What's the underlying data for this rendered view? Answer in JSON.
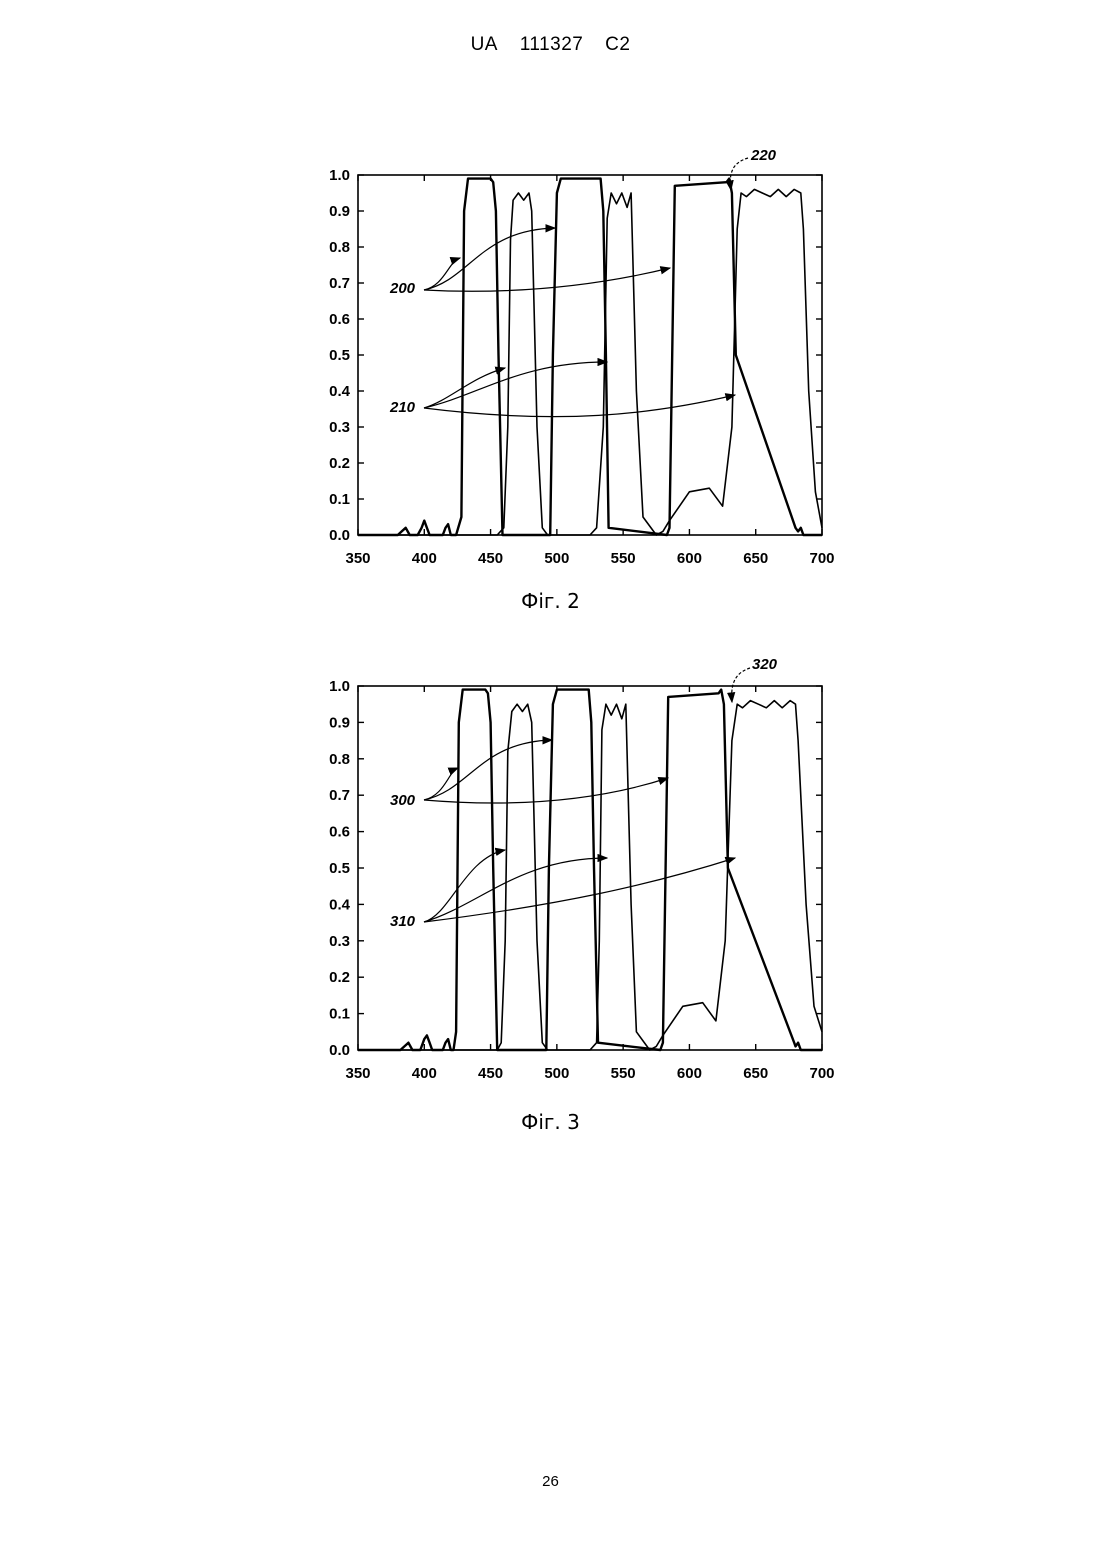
{
  "header": {
    "office": "UA",
    "number": "111327",
    "kind": "C2"
  },
  "page_number": "26",
  "figures": [
    {
      "caption": "Фіг. 2",
      "labels": {
        "a": "200",
        "b": "210",
        "c": "220"
      }
    },
    {
      "caption": "Фіг. 3",
      "labels": {
        "a": "300",
        "b": "310",
        "c": "320"
      }
    }
  ],
  "chart_data": [
    {
      "type": "line",
      "xlabel": "",
      "ylabel": "",
      "xlim": [
        350,
        700
      ],
      "ylim": [
        0.0,
        1.0
      ],
      "x_ticks": [
        "350",
        "400",
        "450",
        "500",
        "550",
        "600",
        "650",
        "700"
      ],
      "y_ticks": [
        "0.0",
        "0.1",
        "0.2",
        "0.3",
        "0.4",
        "0.5",
        "0.6",
        "0.7",
        "0.8",
        "0.9",
        "1.0"
      ],
      "series": [
        {
          "x": [
            350,
            380,
            383,
            386,
            389,
            395,
            398,
            400,
            402,
            404,
            408,
            414,
            416,
            418,
            420,
            424,
            428,
            430,
            433,
            450,
            452,
            454,
            456,
            459,
            495,
            497,
            500,
            503,
            533,
            535,
            537,
            539,
            583,
            585,
            587,
            589,
            628,
            630,
            632,
            635,
            680,
            682,
            684,
            686,
            695,
            700
          ],
          "y": [
            0,
            0,
            0.01,
            0.02,
            0,
            0,
            0.02,
            0.04,
            0.02,
            0,
            0,
            0,
            0.02,
            0.03,
            0,
            0,
            0.05,
            0.9,
            0.99,
            0.99,
            0.98,
            0.9,
            0.5,
            0,
            0,
            0.5,
            0.95,
            0.99,
            0.99,
            0.9,
            0.5,
            0.02,
            0,
            0.02,
            0.5,
            0.97,
            0.98,
            0.99,
            0.95,
            0.5,
            0.02,
            0.01,
            0.02,
            0,
            0,
            0
          ]
        },
        {
          "x": [
            350,
            445,
            455,
            460,
            463,
            465,
            467,
            471,
            475,
            479,
            481,
            485,
            489,
            493,
            525,
            530,
            535,
            538,
            541,
            545,
            549,
            553,
            556,
            560,
            565,
            575,
            580,
            585,
            600,
            615,
            625,
            632,
            636,
            639,
            643,
            649,
            655,
            661,
            667,
            673,
            679,
            684,
            686,
            690,
            695,
            700
          ],
          "y": [
            0,
            0,
            0,
            0.02,
            0.3,
            0.82,
            0.93,
            0.95,
            0.93,
            0.95,
            0.9,
            0.3,
            0.02,
            0,
            0,
            0.02,
            0.3,
            0.88,
            0.95,
            0.92,
            0.95,
            0.91,
            0.95,
            0.4,
            0.05,
            0,
            0.01,
            0.04,
            0.12,
            0.13,
            0.08,
            0.3,
            0.85,
            0.95,
            0.94,
            0.96,
            0.95,
            0.94,
            0.96,
            0.94,
            0.96,
            0.95,
            0.85,
            0.4,
            0.12,
            0.02
          ]
        }
      ]
    },
    {
      "type": "line",
      "xlabel": "",
      "ylabel": "",
      "xlim": [
        350,
        700
      ],
      "ylim": [
        0.0,
        1.0
      ],
      "x_ticks": [
        "350",
        "400",
        "450",
        "500",
        "550",
        "600",
        "650",
        "700"
      ],
      "y_ticks": [
        "0.0",
        "0.1",
        "0.2",
        "0.3",
        "0.4",
        "0.5",
        "0.6",
        "0.7",
        "0.8",
        "0.9",
        "1.0"
      ],
      "series": [
        {
          "x": [
            350,
            382,
            385,
            388,
            391,
            397,
            400,
            402,
            404,
            406,
            410,
            414,
            416,
            418,
            420,
            422,
            424,
            426,
            429,
            446,
            448,
            450,
            452,
            455,
            492,
            494,
            497,
            500,
            524,
            526,
            528,
            531,
            578,
            580,
            582,
            584,
            622,
            624,
            626,
            629,
            679,
            680,
            682,
            684,
            695,
            700
          ],
          "y": [
            0,
            0,
            0.01,
            0.02,
            0,
            0,
            0.03,
            0.04,
            0.02,
            0,
            0,
            0,
            0.02,
            0.03,
            0,
            0,
            0.05,
            0.9,
            0.99,
            0.99,
            0.98,
            0.9,
            0.5,
            0,
            0,
            0.5,
            0.95,
            0.99,
            0.99,
            0.9,
            0.5,
            0.02,
            0,
            0.02,
            0.5,
            0.97,
            0.98,
            0.99,
            0.95,
            0.5,
            0.02,
            0.01,
            0.02,
            0,
            0,
            0
          ]
        },
        {
          "x": [
            350,
            450,
            455,
            458,
            461,
            463,
            466,
            470,
            474,
            478,
            481,
            485,
            489,
            493,
            525,
            530,
            532,
            534,
            537,
            541,
            545,
            549,
            552,
            556,
            560,
            570,
            575,
            580,
            595,
            610,
            620,
            627,
            632,
            636,
            640,
            646,
            652,
            658,
            664,
            670,
            676,
            680,
            682,
            688,
            694,
            700
          ],
          "y": [
            0,
            0,
            0,
            0.02,
            0.3,
            0.82,
            0.93,
            0.95,
            0.93,
            0.95,
            0.9,
            0.3,
            0.02,
            0,
            0,
            0.02,
            0.3,
            0.88,
            0.95,
            0.92,
            0.95,
            0.91,
            0.95,
            0.4,
            0.05,
            0,
            0.01,
            0.04,
            0.12,
            0.13,
            0.08,
            0.3,
            0.85,
            0.95,
            0.94,
            0.96,
            0.95,
            0.94,
            0.96,
            0.94,
            0.96,
            0.95,
            0.85,
            0.4,
            0.12,
            0.05
          ]
        }
      ]
    }
  ]
}
